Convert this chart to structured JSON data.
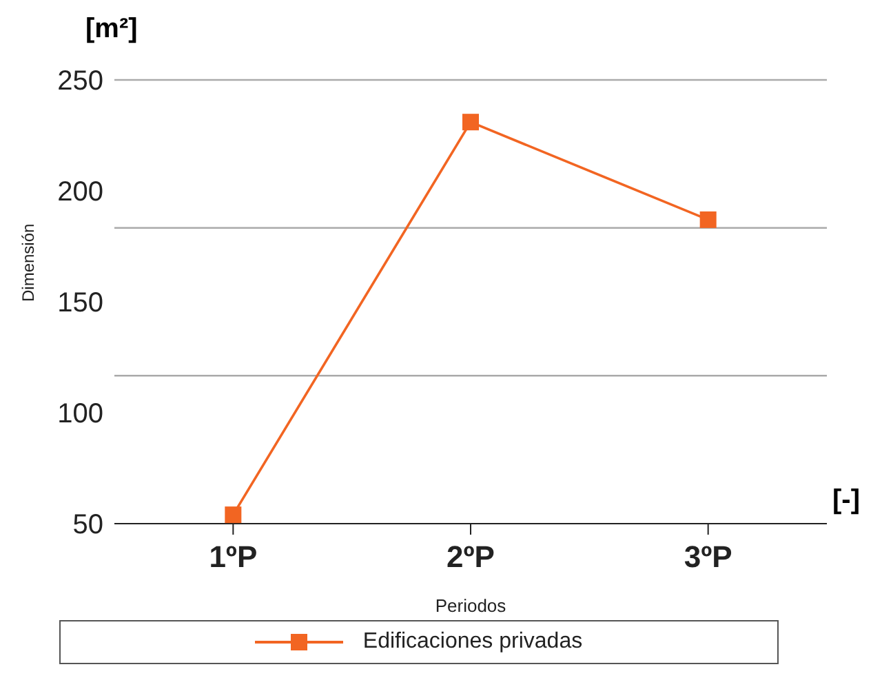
{
  "chart_data": {
    "type": "line",
    "ylabel": "Dimensión",
    "xlabel": "Periodos",
    "categories": [
      "1ºP",
      "2ºP",
      "3ºP"
    ],
    "series": [
      {
        "name": "Edificaciones privadas",
        "color": "#f26522",
        "values": [
          54,
          231,
          187
        ]
      }
    ],
    "ylim": [
      50,
      250
    ],
    "yticks": [
      50,
      100,
      150,
      200,
      250
    ],
    "ref_lines": [
      {
        "axis": "y",
        "value": 116.7,
        "color": "#aaaaaa"
      },
      {
        "axis": "y",
        "value": 183.3,
        "color": "#aaaaaa"
      },
      {
        "axis": "y",
        "value": 250,
        "color": "#aaaaaa"
      }
    ],
    "annotations": [
      "[m²]",
      "[-]"
    ],
    "marker": "square",
    "line_style": "solid",
    "legend": "bottom",
    "grid": false
  }
}
